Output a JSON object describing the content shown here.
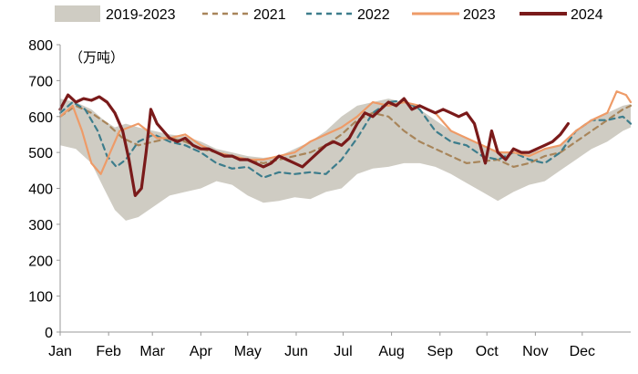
{
  "chart_data": {
    "type": "line",
    "unit_label": "（万吨）",
    "y_ticks": [
      "0",
      "100",
      "200",
      "300",
      "400",
      "500",
      "600",
      "700",
      "800"
    ],
    "ylim": [
      0,
      800
    ],
    "x_months": [
      "Jan",
      "Feb",
      "Mar",
      "Apr",
      "May",
      "Jun",
      "Jul",
      "Aug",
      "Sep",
      "Oct",
      "Nov",
      "Dec"
    ],
    "xlim_days": [
      0,
      365
    ],
    "legend": [
      {
        "label": "2019-2023",
        "style": "area",
        "color": "#cfccc3"
      },
      {
        "label": "2021",
        "style": "dashed",
        "color": "#a8855a"
      },
      {
        "label": "2022",
        "style": "dashed",
        "color": "#3d7d8c"
      },
      {
        "label": "2023",
        "style": "solid",
        "color": "#ee9b68"
      },
      {
        "label": "2024",
        "style": "solid",
        "color": "#7a1a1a"
      }
    ],
    "band": {
      "name": "2019-2023",
      "color": "#cfccc3",
      "x": [
        0,
        10,
        20,
        28,
        35,
        42,
        50,
        60,
        70,
        80,
        90,
        100,
        110,
        120,
        130,
        140,
        150,
        160,
        170,
        180,
        190,
        200,
        210,
        220,
        230,
        240,
        250,
        260,
        270,
        280,
        290,
        300,
        310,
        320,
        330,
        340,
        350,
        360,
        365
      ],
      "low": [
        520,
        510,
        470,
        400,
        340,
        310,
        320,
        350,
        380,
        390,
        400,
        420,
        410,
        380,
        360,
        365,
        375,
        370,
        390,
        400,
        440,
        455,
        460,
        470,
        470,
        460,
        440,
        415,
        390,
        365,
        390,
        410,
        420,
        450,
        480,
        510,
        530,
        560,
        570
      ],
      "high": [
        650,
        640,
        620,
        590,
        570,
        580,
        570,
        560,
        550,
        545,
        530,
        510,
        500,
        490,
        485,
        490,
        510,
        530,
        560,
        600,
        630,
        640,
        650,
        640,
        620,
        590,
        560,
        540,
        520,
        505,
        500,
        500,
        510,
        520,
        560,
        590,
        610,
        630,
        635
      ]
    },
    "series": [
      {
        "name": "2021",
        "color": "#a8855a",
        "dash": "6,5",
        "x": [
          0,
          10,
          20,
          30,
          40,
          50,
          60,
          70,
          80,
          90,
          100,
          110,
          120,
          130,
          140,
          150,
          160,
          170,
          180,
          190,
          200,
          210,
          220,
          230,
          240,
          250,
          260,
          270,
          280,
          290,
          300,
          310,
          320,
          330,
          340,
          350,
          360,
          365
        ],
        "y": [
          600,
          630,
          610,
          580,
          540,
          520,
          530,
          540,
          530,
          510,
          500,
          490,
          480,
          470,
          480,
          490,
          500,
          520,
          550,
          590,
          610,
          600,
          560,
          530,
          510,
          490,
          470,
          475,
          480,
          460,
          470,
          490,
          500,
          530,
          560,
          590,
          620,
          630
        ]
      },
      {
        "name": "2022",
        "color": "#3d7d8c",
        "dash": "6,5",
        "x": [
          0,
          8,
          16,
          24,
          30,
          36,
          42,
          50,
          60,
          70,
          80,
          90,
          100,
          110,
          120,
          130,
          140,
          150,
          160,
          170,
          180,
          190,
          200,
          210,
          220,
          230,
          240,
          250,
          260,
          270,
          280,
          290,
          300,
          310,
          320,
          330,
          340,
          350,
          360,
          365
        ],
        "y": [
          610,
          640,
          620,
          560,
          490,
          460,
          480,
          530,
          550,
          530,
          520,
          500,
          470,
          455,
          460,
          430,
          445,
          440,
          445,
          440,
          480,
          540,
          610,
          640,
          645,
          620,
          560,
          530,
          520,
          490,
          480,
          500,
          480,
          470,
          500,
          560,
          590,
          590,
          600,
          580
        ]
      },
      {
        "name": "2023",
        "color": "#ee9b68",
        "dash": "",
        "x": [
          0,
          8,
          14,
          20,
          26,
          32,
          38,
          44,
          50,
          56,
          62,
          70,
          80,
          90,
          100,
          110,
          120,
          130,
          140,
          150,
          160,
          170,
          180,
          190,
          200,
          210,
          220,
          230,
          240,
          250,
          260,
          270,
          280,
          290,
          300,
          310,
          320,
          330,
          340,
          350,
          356,
          362,
          365
        ],
        "y": [
          600,
          630,
          560,
          470,
          440,
          500,
          560,
          570,
          580,
          560,
          540,
          540,
          550,
          520,
          500,
          490,
          480,
          480,
          490,
          500,
          530,
          550,
          570,
          600,
          640,
          630,
          640,
          630,
          610,
          560,
          540,
          520,
          500,
          500,
          490,
          510,
          520,
          560,
          590,
          610,
          670,
          660,
          640
        ]
      },
      {
        "name": "2024",
        "color": "#7a1a1a",
        "dash": "",
        "x": [
          0,
          5,
          10,
          15,
          20,
          25,
          30,
          35,
          40,
          44,
          48,
          52,
          55,
          58,
          62,
          66,
          70,
          75,
          80,
          85,
          90,
          95,
          100,
          105,
          110,
          115,
          120,
          125,
          130,
          135,
          140,
          145,
          150,
          155,
          160,
          165,
          170,
          175,
          180,
          185,
          190,
          195,
          200,
          205,
          210,
          215,
          220,
          225,
          230,
          235,
          240,
          245,
          250,
          255,
          260,
          265,
          270,
          272,
          276,
          280,
          285,
          290,
          295,
          300,
          305,
          310,
          315,
          320,
          325
        ],
        "y": [
          620,
          660,
          640,
          650,
          645,
          655,
          640,
          610,
          560,
          480,
          380,
          400,
          500,
          620,
          580,
          560,
          540,
          530,
          540,
          520,
          510,
          510,
          500,
          490,
          490,
          480,
          480,
          470,
          460,
          470,
          490,
          480,
          470,
          460,
          480,
          500,
          520,
          530,
          520,
          540,
          580,
          610,
          600,
          620,
          640,
          630,
          650,
          620,
          630,
          620,
          610,
          620,
          610,
          600,
          610,
          580,
          500,
          470,
          560,
          500,
          480,
          510,
          500,
          500,
          510,
          520,
          530,
          550,
          580
        ]
      }
    ]
  }
}
